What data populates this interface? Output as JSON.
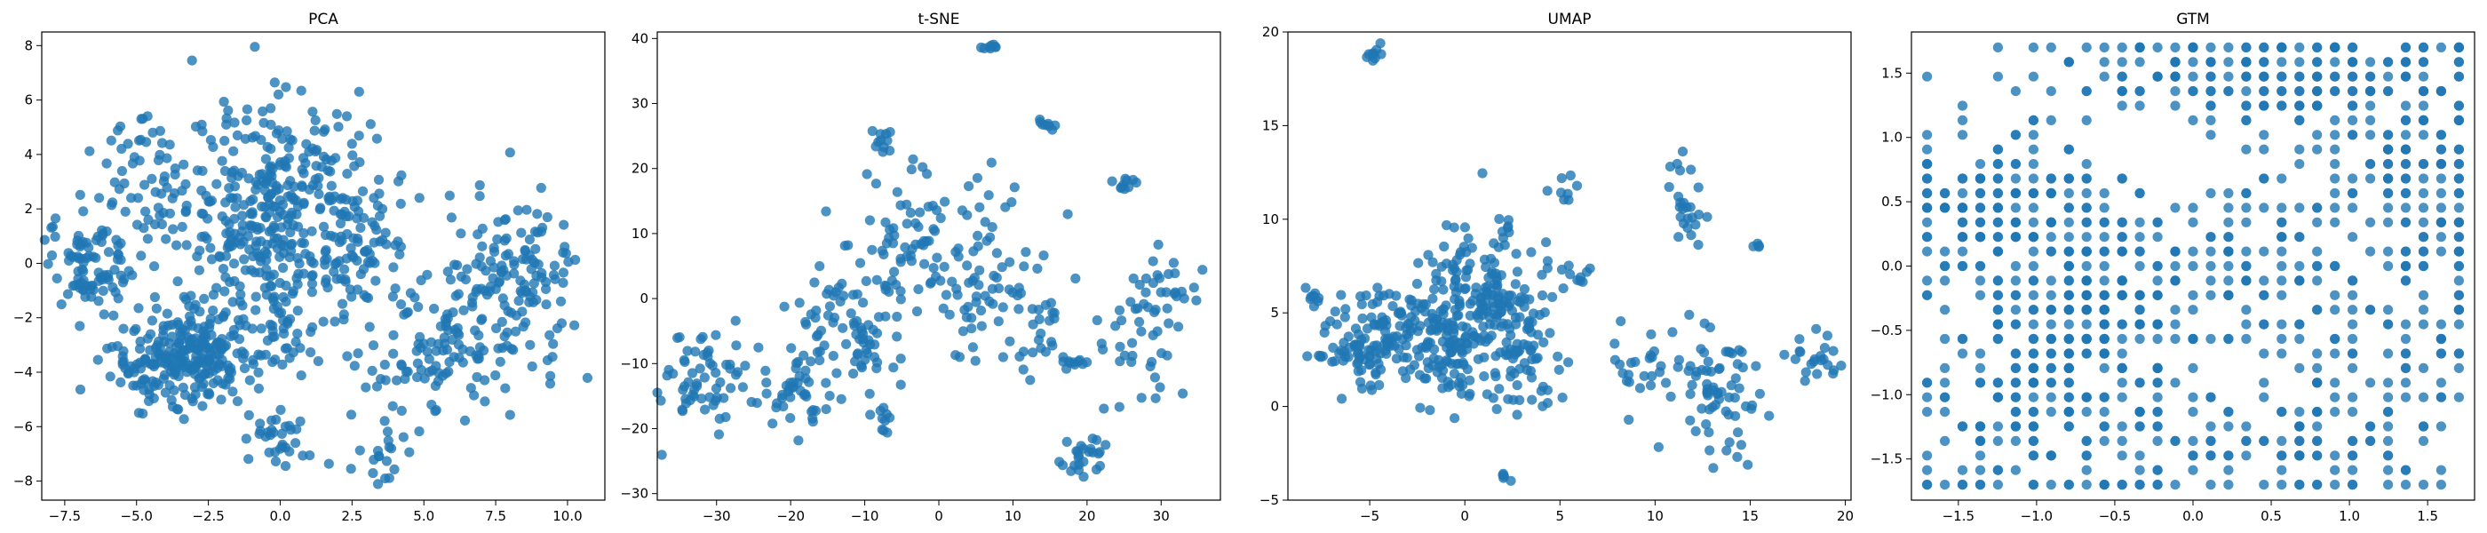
{
  "accent_color": "#1f77b4",
  "chart_data": [
    {
      "type": "scatter",
      "title": "PCA",
      "xlim": [
        -8.3,
        11.3
      ],
      "ylim": [
        -8.7,
        8.5
      ],
      "xticks": [
        -7.5,
        -5.0,
        -2.5,
        0.0,
        2.5,
        5.0,
        7.5,
        10.0
      ],
      "xtick_labels": [
        "−7.5",
        "−5.0",
        "−2.5",
        "0.0",
        "2.5",
        "5.0",
        "7.5",
        "10.0"
      ],
      "yticks": [
        -8,
        -6,
        -4,
        -2,
        0,
        2,
        4,
        6,
        8
      ],
      "ytick_labels": [
        "−8",
        "−6",
        "−4",
        "−2",
        "0",
        "2",
        "4",
        "6",
        "8"
      ],
      "clusters": [
        {
          "x": 0.0,
          "y": 2.0,
          "sx": 1.6,
          "sy": 2.0,
          "n": 340
        },
        {
          "x": -3.5,
          "y": -3.5,
          "sx": 1.2,
          "sy": 0.9,
          "n": 230
        },
        {
          "x": -6.5,
          "y": 0.0,
          "sx": 0.8,
          "sy": 0.9,
          "n": 90
        },
        {
          "x": -4.5,
          "y": 3.0,
          "sx": 1.0,
          "sy": 1.5,
          "n": 60
        },
        {
          "x": 8.0,
          "y": -1.0,
          "sx": 1.2,
          "sy": 1.6,
          "n": 150
        },
        {
          "x": 5.5,
          "y": -3.5,
          "sx": 1.5,
          "sy": 1.2,
          "n": 90
        },
        {
          "x": 0.0,
          "y": -6.5,
          "sx": 0.5,
          "sy": 0.5,
          "n": 30
        },
        {
          "x": 3.5,
          "y": -7.0,
          "sx": 0.6,
          "sy": 0.6,
          "n": 20
        },
        {
          "x": -1.5,
          "y": -2.0,
          "sx": 1.5,
          "sy": 1.5,
          "n": 90
        },
        {
          "x": 3.0,
          "y": 1.0,
          "sx": 1.0,
          "sy": 1.5,
          "n": 60
        }
      ]
    },
    {
      "type": "scatter",
      "title": "t-SNE",
      "xlim": [
        -38,
        38
      ],
      "ylim": [
        -31,
        41
      ],
      "xticks": [
        -30,
        -20,
        -10,
        0,
        10,
        20,
        30
      ],
      "xtick_labels": [
        "−30",
        "−20",
        "−10",
        "0",
        "10",
        "20",
        "30"
      ],
      "yticks": [
        -30,
        -20,
        -10,
        0,
        10,
        20,
        30,
        40
      ],
      "ytick_labels": [
        "−30",
        "−20",
        "−10",
        "0",
        "10",
        "20",
        "30",
        "40"
      ],
      "clusters": [
        {
          "x": -32,
          "y": -12,
          "sx": 3.0,
          "sy": 4.0,
          "n": 60
        },
        {
          "x": -20,
          "y": -14,
          "sx": 3.0,
          "sy": 3.0,
          "n": 45
        },
        {
          "x": -12,
          "y": -5,
          "sx": 4.0,
          "sy": 5.0,
          "n": 80
        },
        {
          "x": -5,
          "y": 10,
          "sx": 5.0,
          "sy": 6.0,
          "n": 60
        },
        {
          "x": 5,
          "y": 5,
          "sx": 5.0,
          "sy": 8.0,
          "n": 70
        },
        {
          "x": 12,
          "y": -5,
          "sx": 3.0,
          "sy": 4.0,
          "n": 30
        },
        {
          "x": 20,
          "y": -24,
          "sx": 1.8,
          "sy": 1.8,
          "n": 25
        },
        {
          "x": 27,
          "y": -7,
          "sx": 3.0,
          "sy": 4.0,
          "n": 35
        },
        {
          "x": 31,
          "y": 2,
          "sx": 3.0,
          "sy": 2.0,
          "n": 25
        },
        {
          "x": 7,
          "y": 38.8,
          "sx": 0.7,
          "sy": 0.3,
          "n": 8
        },
        {
          "x": 25,
          "y": 18,
          "sx": 0.8,
          "sy": 0.6,
          "n": 10
        },
        {
          "x": 14.5,
          "y": 26.8,
          "sx": 0.6,
          "sy": 0.4,
          "n": 8
        },
        {
          "x": -8,
          "y": -19,
          "sx": 1.0,
          "sy": 1.5,
          "n": 10
        },
        {
          "x": 18,
          "y": -10,
          "sx": 1.0,
          "sy": 0.4,
          "n": 10
        },
        {
          "x": -8,
          "y": 24,
          "sx": 1.0,
          "sy": 1.0,
          "n": 10
        }
      ]
    },
    {
      "type": "scatter",
      "title": "UMAP",
      "xlim": [
        -9.3,
        20.3
      ],
      "ylim": [
        -5.0,
        20.0
      ],
      "xticks": [
        -5,
        0,
        5,
        10,
        15,
        20
      ],
      "xtick_labels": [
        "−5",
        "0",
        "5",
        "10",
        "15",
        "20"
      ],
      "yticks": [
        -5,
        0,
        5,
        10,
        15,
        20
      ],
      "ytick_labels": [
        "−5",
        "0",
        "5",
        "10",
        "15",
        "20"
      ],
      "clusters": [
        {
          "x": -4.5,
          "y": 3.5,
          "sx": 1.6,
          "sy": 1.4,
          "n": 140
        },
        {
          "x": -1.0,
          "y": 3.0,
          "sx": 1.3,
          "sy": 1.4,
          "n": 100
        },
        {
          "x": 1.0,
          "y": 6.0,
          "sx": 1.5,
          "sy": 2.0,
          "n": 160
        },
        {
          "x": 3.0,
          "y": 2.5,
          "sx": 1.2,
          "sy": 1.6,
          "n": 60
        },
        {
          "x": -8.0,
          "y": 6.0,
          "sx": 0.3,
          "sy": 0.2,
          "n": 8
        },
        {
          "x": -4.8,
          "y": 18.7,
          "sx": 0.2,
          "sy": 0.3,
          "n": 10
        },
        {
          "x": 5.5,
          "y": 7.0,
          "sx": 0.6,
          "sy": 0.6,
          "n": 12
        },
        {
          "x": 5.2,
          "y": 11.5,
          "sx": 0.3,
          "sy": 0.5,
          "n": 8
        },
        {
          "x": 11.5,
          "y": 10.5,
          "sx": 0.6,
          "sy": 1.4,
          "n": 25
        },
        {
          "x": 9.5,
          "y": 2.0,
          "sx": 1.0,
          "sy": 1.0,
          "n": 25
        },
        {
          "x": 13.0,
          "y": 1.0,
          "sx": 1.2,
          "sy": 1.8,
          "n": 70
        },
        {
          "x": 18.3,
          "y": 2.8,
          "sx": 0.8,
          "sy": 0.6,
          "n": 22
        },
        {
          "x": 2.0,
          "y": -3.8,
          "sx": 0.2,
          "sy": 0.15,
          "n": 5
        },
        {
          "x": 15.3,
          "y": 8.5,
          "sx": 0.2,
          "sy": 0.2,
          "n": 4
        }
      ]
    },
    {
      "type": "scatter",
      "title": "GTM",
      "xlim": [
        -1.8,
        1.8
      ],
      "ylim": [
        -1.82,
        1.82
      ],
      "xticks": [
        -1.5,
        -1.0,
        -0.5,
        0.0,
        0.5,
        1.0,
        1.5
      ],
      "xtick_labels": [
        "−1.5",
        "−1.0",
        "−0.5",
        "0.0",
        "0.5",
        "1.0",
        "1.5"
      ],
      "yticks": [
        -1.5,
        -1.0,
        -0.5,
        0.0,
        0.5,
        1.0,
        1.5
      ],
      "ytick_labels": [
        "−1.5",
        "−1.0",
        "−0.5",
        "0.0",
        "0.5",
        "1.0",
        "1.5"
      ],
      "grid_span": [
        -1.7,
        1.7
      ],
      "clusters": [
        {
          "x": -0.6,
          "y": -0.5,
          "sx": 0.35,
          "sy": 0.5,
          "n": 260
        },
        {
          "x": -1.2,
          "y": 0.4,
          "sx": 0.35,
          "sy": 0.35,
          "n": 160
        },
        {
          "x": 1.2,
          "y": 1.0,
          "sx": 0.4,
          "sy": 0.5,
          "n": 120
        },
        {
          "x": 0.2,
          "y": 1.5,
          "sx": 0.7,
          "sy": 0.2,
          "n": 150
        },
        {
          "x": 1.0,
          "y": -1.0,
          "sx": 0.4,
          "sy": 0.5,
          "n": 120
        },
        {
          "x": -1.3,
          "y": -1.2,
          "sx": 0.3,
          "sy": 0.4,
          "n": 80
        },
        {
          "x": 0.3,
          "y": 0.2,
          "sx": 0.4,
          "sy": 0.5,
          "n": 90
        },
        {
          "x": 1.5,
          "y": 0.3,
          "sx": 0.2,
          "sy": 0.6,
          "n": 60
        },
        {
          "x": 0.0,
          "y": -1.5,
          "sx": 0.5,
          "sy": 0.2,
          "n": 60
        }
      ]
    }
  ]
}
